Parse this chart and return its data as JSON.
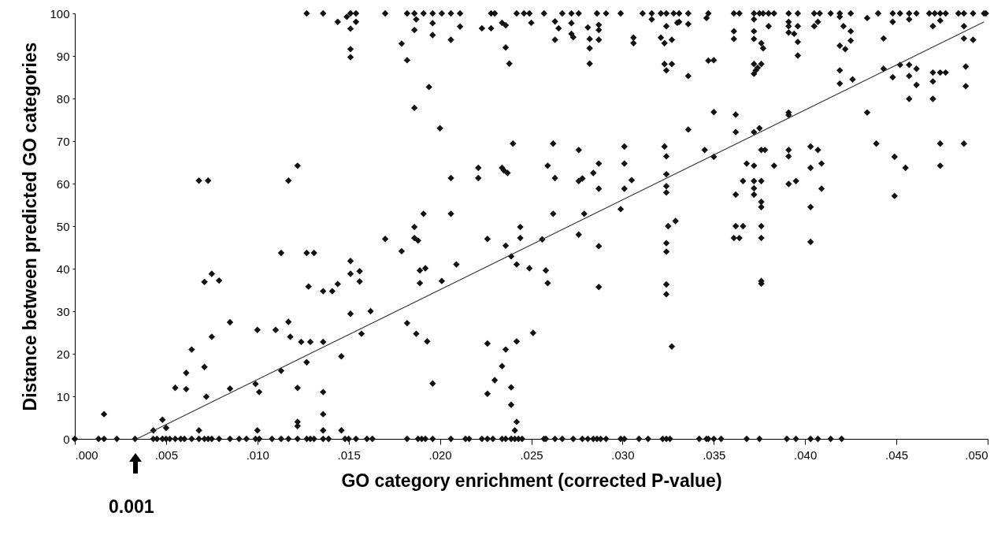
{
  "chart_data": {
    "type": "scatter",
    "xlabel": "GO category enrichment (corrected P-value)",
    "ylabel": "Distance between predicted GO categories",
    "xlim": [
      0,
      0.05
    ],
    "ylim": [
      0,
      100
    ],
    "xticks": [
      {
        "value": 0,
        "label": ".000"
      },
      {
        "value": 0.005,
        "label": ".005"
      },
      {
        "value": 0.01,
        "label": ".010"
      },
      {
        "value": 0.015,
        "label": ".015"
      },
      {
        "value": 0.02,
        "label": ".020"
      },
      {
        "value": 0.025,
        "label": ".025"
      },
      {
        "value": 0.03,
        "label": ".030"
      },
      {
        "value": 0.035,
        "label": ".035"
      },
      {
        "value": 0.04,
        "label": ".040"
      },
      {
        "value": 0.045,
        "label": ".045"
      },
      {
        "value": 0.05,
        "label": ".050"
      }
    ],
    "yticks": [
      0,
      10,
      20,
      30,
      40,
      50,
      60,
      70,
      80,
      90,
      100
    ],
    "grid": false,
    "annotations": [
      "0.001"
    ],
    "series": [
      {
        "marker": "diamond",
        "color": "#111111",
        "x": [
          0,
          0.0013,
          0.0016,
          0.0023,
          0.0033,
          0.0043,
          0.0045,
          0.0048,
          0.005,
          0.0052,
          0.0055,
          0.0058,
          0.006,
          0.0064,
          0.0068,
          0.0071,
          0.0073,
          0.0075,
          0.0079,
          0.0085,
          0.009,
          0.0094,
          0.0099,
          0.0101,
          0.0108,
          0.0113,
          0.0117,
          0.0122,
          0.0127,
          0.0129,
          0.0131,
          0.0136,
          0.0139,
          0.0148,
          0.015,
          0.0154,
          0.016,
          0.0163,
          0.0182,
          0.0188,
          0.019,
          0.0192,
          0.0196,
          0.0206,
          0.0214,
          0.0216,
          0.0223,
          0.0226,
          0.0229,
          0.0234,
          0.0236,
          0.0239,
          0.0241,
          0.0243,
          0.0245,
          0.0257,
          0.0258,
          0.0263,
          0.0267,
          0.0273,
          0.0278,
          0.0281,
          0.0284,
          0.0286,
          0.0288,
          0.0291,
          0.0299,
          0.0301,
          0.0309,
          0.0314,
          0.0322,
          0.0324,
          0.0326,
          0.0342,
          0.0346,
          0.0347,
          0.035,
          0.0354,
          0.0368,
          0.0375,
          0.039,
          0.0395,
          0.0403,
          0.0407,
          0.0414,
          0.042,
          0.0016,
          0.0043,
          0.0048,
          0.005,
          0.0055,
          0.0061,
          0.0061,
          0.0064,
          0.0068,
          0.0071,
          0.0071,
          0.0072,
          0.0075,
          0.0075,
          0.0079,
          0.0085,
          0.0085,
          0.0099,
          0.01,
          0.01,
          0.0101,
          0.011,
          0.0113,
          0.0113,
          0.0117,
          0.0118,
          0.0122,
          0.0122,
          0.0122,
          0.0124,
          0.0127,
          0.0127,
          0.0128,
          0.0129,
          0.0131,
          0.0136,
          0.0136,
          0.0136,
          0.0136,
          0.0136,
          0.0141,
          0.0144,
          0.0146,
          0.0146,
          0.0151,
          0.0151,
          0.0151,
          0.0156,
          0.0156,
          0.0157,
          0.0162,
          0.0068,
          0.0073,
          0.0117,
          0.0122,
          0.0127,
          0.0136,
          0.0144,
          0.0149,
          0.0151,
          0.0154,
          0.0151,
          0.0154,
          0.0151,
          0.0151,
          0.017,
          0.0182,
          0.0186,
          0.0191,
          0.0196,
          0.0201,
          0.0206,
          0.0211,
          0.0228,
          0.023,
          0.0242,
          0.0246,
          0.0249,
          0.0257,
          0.0267,
          0.0272,
          0.0276,
          0.0286,
          0.0291,
          0.0299,
          0.0311,
          0.0316,
          0.0321,
          0.0324,
          0.0328,
          0.0331,
          0.0187,
          0.0196,
          0.0186,
          0.0196,
          0.0211,
          0.0206,
          0.0179,
          0.0182,
          0.0223,
          0.0228,
          0.0234,
          0.0236,
          0.0236,
          0.0238,
          0.025,
          0.0263,
          0.0265,
          0.0272,
          0.0263,
          0.0272,
          0.0273,
          0.0281,
          0.0287,
          0.0287,
          0.0282,
          0.0287,
          0.0282,
          0.0282,
          0.0306,
          0.0306,
          0.0316,
          0.0324,
          0.033,
          0.0321,
          0.0327,
          0.0323,
          0.0323,
          0.0327,
          0.0324,
          0.0194,
          0.0186,
          0.02,
          0.024,
          0.0262,
          0.0276,
          0.0301,
          0.0323,
          0.0324,
          0.0221,
          0.0221,
          0.0206,
          0.0234,
          0.0235,
          0.0237,
          0.0259,
          0.0263,
          0.0276,
          0.0278,
          0.0284,
          0.0287,
          0.0301,
          0.0305,
          0.0287,
          0.0301,
          0.0324,
          0.0324,
          0.0324,
          0.0191,
          0.0206,
          0.0262,
          0.0279,
          0.0299,
          0.0329,
          0.0325,
          0.0186,
          0.0244,
          0.0186,
          0.0188,
          0.017,
          0.0179,
          0.0189,
          0.0192,
          0.0189,
          0.0201,
          0.0209,
          0.0182,
          0.0187,
          0.0193,
          0.0196,
          0.0226,
          0.0236,
          0.0244,
          0.0239,
          0.0242,
          0.0249,
          0.0256,
          0.0258,
          0.0259,
          0.0276,
          0.0287,
          0.0287,
          0.0324,
          0.0324,
          0.0324,
          0.0324,
          0.0327,
          0.0226,
          0.0236,
          0.0242,
          0.0251,
          0.0234,
          0.023,
          0.0226,
          0.0239,
          0.0239,
          0.0242,
          0.0241,
          0.0336,
          0.0347,
          0.0361,
          0.0364,
          0.0372,
          0.0375,
          0.0377,
          0.038,
          0.0383,
          0.0391,
          0.0396,
          0.0405,
          0.0408,
          0.0414,
          0.0419,
          0.0425,
          0.044,
          0.0448,
          0.0452,
          0.0457,
          0.0461,
          0.0468,
          0.0471,
          0.0474,
          0.0477,
          0.0484,
          0.0487,
          0.0492,
          0.0498,
          0.0499,
          0.0331,
          0.0336,
          0.0346,
          0.0361,
          0.0361,
          0.0372,
          0.0372,
          0.0372,
          0.0376,
          0.0377,
          0.038,
          0.0391,
          0.0391,
          0.0391,
          0.0394,
          0.0396,
          0.0396,
          0.0396,
          0.0405,
          0.0407,
          0.0419,
          0.0421,
          0.0425,
          0.0419,
          0.0422,
          0.0425,
          0.0434,
          0.0443,
          0.0448,
          0.0457,
          0.047,
          0.0474,
          0.0487,
          0.0487,
          0.0492,
          0.0347,
          0.035,
          0.0336,
          0.0372,
          0.0376,
          0.0373,
          0.0374,
          0.0372,
          0.0419,
          0.0419,
          0.0426,
          0.0443,
          0.0452,
          0.0457,
          0.0461,
          0.0448,
          0.0457,
          0.0461,
          0.047,
          0.0474,
          0.0477,
          0.047,
          0.0488,
          0.0488,
          0.0457,
          0.047,
          0.0434,
          0.035,
          0.0362,
          0.0336,
          0.0362,
          0.0372,
          0.0375,
          0.0391,
          0.0391,
          0.0345,
          0.035,
          0.0368,
          0.0372,
          0.0376,
          0.0378,
          0.0383,
          0.0391,
          0.0391,
          0.0403,
          0.0407,
          0.0403,
          0.0409,
          0.0366,
          0.0372,
          0.0376,
          0.0391,
          0.0395,
          0.0409,
          0.0362,
          0.0372,
          0.0372,
          0.0376,
          0.0376,
          0.0403,
          0.0439,
          0.0449,
          0.0455,
          0.0474,
          0.0487,
          0.0474,
          0.0449,
          0.0362,
          0.0366,
          0.0376,
          0.0361,
          0.0364,
          0.0376,
          0.0403,
          0.0376,
          0.0376
        ],
        "values": [
          0,
          0,
          0,
          0,
          0,
          0,
          0,
          0,
          0,
          0,
          0,
          0,
          0,
          0,
          0,
          0,
          0,
          0,
          0,
          0,
          0,
          0,
          0,
          0,
          0,
          0,
          0,
          0,
          0,
          0,
          0,
          0,
          0,
          0,
          0,
          0,
          0,
          0,
          0,
          0,
          0,
          0,
          0,
          0,
          0,
          0,
          0,
          0,
          0,
          0,
          0,
          0,
          0,
          0,
          0,
          0,
          0,
          0,
          0,
          0,
          0,
          0,
          0,
          0,
          0,
          0,
          0,
          0,
          0,
          0,
          0,
          0,
          0,
          0,
          0,
          0,
          0,
          0,
          0,
          0,
          0,
          0,
          0,
          0,
          0,
          0,
          5.8,
          2,
          4.5,
          2.6,
          12,
          15.5,
          11.7,
          21,
          2,
          16.9,
          36.9,
          9.9,
          38.8,
          24,
          37.2,
          27.4,
          11.8,
          12.9,
          25.6,
          2,
          11,
          25.6,
          43.7,
          16,
          27.5,
          24,
          12,
          4,
          3,
          22.8,
          43.7,
          18,
          35.8,
          22.8,
          43.7,
          34.7,
          22.8,
          11,
          5.8,
          2,
          34.7,
          36.4,
          19.4,
          2,
          41.8,
          38.8,
          29.4,
          39.4,
          37,
          24.7,
          30,
          60.7,
          60.7,
          60.7,
          64.2,
          100,
          100,
          98,
          99.2,
          100,
          100,
          96.4,
          98,
          91.6,
          89.7,
          100,
          100,
          100,
          100,
          100,
          100,
          100,
          100,
          100,
          100,
          100,
          100,
          100,
          100,
          100,
          100,
          100,
          100,
          100,
          100,
          100,
          100,
          100,
          100,
          100,
          100,
          98.6,
          97.7,
          96.1,
          94.9,
          96.9,
          93.8,
          92.9,
          89,
          96.5,
          96.5,
          97.8,
          97.2,
          92,
          88.2,
          97.8,
          98.1,
          96.5,
          97.7,
          93.8,
          95.2,
          94.4,
          96.7,
          97.3,
          96.1,
          94,
          93.8,
          91.8,
          88.2,
          94.3,
          93,
          98.6,
          97,
          97.8,
          94.3,
          93.8,
          93,
          88.1,
          88.1,
          86.6,
          82.7,
          77.8,
          73,
          69.4,
          69.4,
          67.9,
          68.7,
          68.7,
          66.4,
          63.7,
          61.3,
          61.3,
          63.7,
          63.1,
          62.5,
          64.2,
          61.3,
          60.6,
          61.2,
          62.5,
          64.7,
          64.7,
          60.8,
          58.8,
          58.8,
          62.2,
          59.4,
          57.9,
          52.9,
          52.9,
          52.9,
          52.9,
          54,
          51.2,
          50,
          49.8,
          49.8,
          47.2,
          46.6,
          47,
          44.1,
          39.6,
          40.1,
          36.6,
          37.1,
          41,
          27.2,
          24.7,
          22.9,
          13,
          47,
          45.4,
          47.2,
          42.9,
          41,
          40.1,
          46.9,
          39.6,
          36.6,
          48,
          45.3,
          35.7,
          46,
          44,
          36.3,
          34,
          21.7,
          22.4,
          21,
          22.9,
          24.9,
          17.1,
          13.8,
          10.6,
          12.1,
          8,
          4,
          2,
          100,
          100,
          100,
          100,
          100,
          100,
          100,
          100,
          100,
          100,
          100,
          100,
          100,
          100,
          100,
          100,
          100,
          100,
          100,
          100,
          100,
          100,
          100,
          100,
          100,
          100,
          100,
          100,
          100,
          100,
          98,
          97.5,
          98.9,
          95.8,
          94,
          98.6,
          95.8,
          94,
          93,
          91.8,
          97,
          98,
          97,
          95.5,
          95.2,
          97,
          93.3,
          90.1,
          97,
          98,
          99.2,
          97,
          95.8,
          92.4,
          91.6,
          93.6,
          98.9,
          94.1,
          98,
          98.6,
          97,
          98.3,
          97,
          94.1,
          93.8,
          88.9,
          89,
          85.3,
          88.1,
          88.1,
          86.6,
          87.2,
          85.8,
          86.6,
          83.5,
          84.5,
          87,
          87.9,
          87.9,
          87,
          85,
          85.3,
          83.2,
          86.1,
          86.1,
          86.1,
          84,
          87.5,
          82.9,
          79.9,
          79.9,
          76.7,
          76.8,
          76.2,
          72.7,
          72.1,
          72.1,
          73,
          76.7,
          76.1,
          67.9,
          66.3,
          64.7,
          64.2,
          67.9,
          67.9,
          64.2,
          67.9,
          66.4,
          68.7,
          67.9,
          63.7,
          64.7,
          60.6,
          60.6,
          60.6,
          59.9,
          60.6,
          58.8,
          57.4,
          58.9,
          57.4,
          55.7,
          54.5,
          54.5,
          69.4,
          66.3,
          63.7,
          69.4,
          69.4,
          64.2,
          57.1,
          50,
          50,
          50,
          47.2,
          47.2,
          47.2,
          46.3,
          37.1,
          36.5
        ]
      },
      {
        "type": "line",
        "color": "#333333",
        "x": [
          0.0034,
          0.0498
        ],
        "values": [
          0,
          98
        ]
      }
    ]
  }
}
